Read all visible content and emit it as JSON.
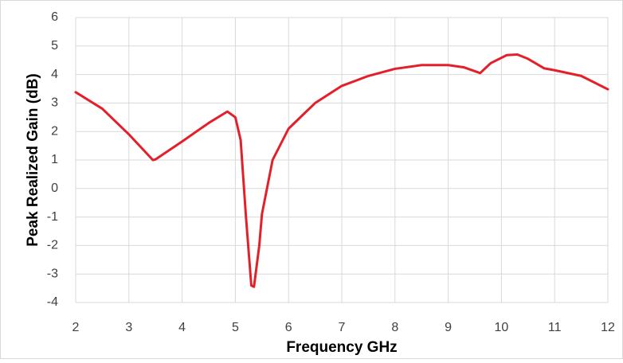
{
  "chart_data": {
    "type": "line",
    "x_label": "Frequency GHz",
    "y_label": "Peak Realized Gain (dB)",
    "x": [
      2,
      2.5,
      3,
      3.45,
      3.5,
      4,
      4.5,
      4.85,
      5.0,
      5.1,
      5.2,
      5.3,
      5.35,
      5.45,
      5.5,
      5.7,
      6.0,
      6.5,
      7,
      7.5,
      8,
      8.5,
      9,
      9.3,
      9.6,
      9.8,
      10.1,
      10.3,
      10.5,
      10.8,
      11,
      11.5,
      12
    ],
    "series": [
      {
        "color": "#e3202a",
        "values": [
          3.38,
          2.8,
          1.9,
          1.0,
          1.02,
          1.65,
          2.3,
          2.7,
          2.5,
          1.7,
          -1.0,
          -3.4,
          -3.45,
          -2.0,
          -0.9,
          1.0,
          2.1,
          3.0,
          3.6,
          3.95,
          4.2,
          4.33,
          4.33,
          4.25,
          4.05,
          4.4,
          4.68,
          4.7,
          4.55,
          4.22,
          4.15,
          3.95,
          3.48
        ]
      }
    ],
    "xlim": [
      2,
      12
    ],
    "xticks": [
      2,
      3,
      4,
      5,
      6,
      7,
      8,
      9,
      10,
      11,
      12
    ],
    "ylim": [
      -4,
      6
    ],
    "yticks": [
      -4,
      -3,
      -2,
      -1,
      0,
      1,
      2,
      3,
      4,
      5,
      6
    ],
    "grid": true
  }
}
